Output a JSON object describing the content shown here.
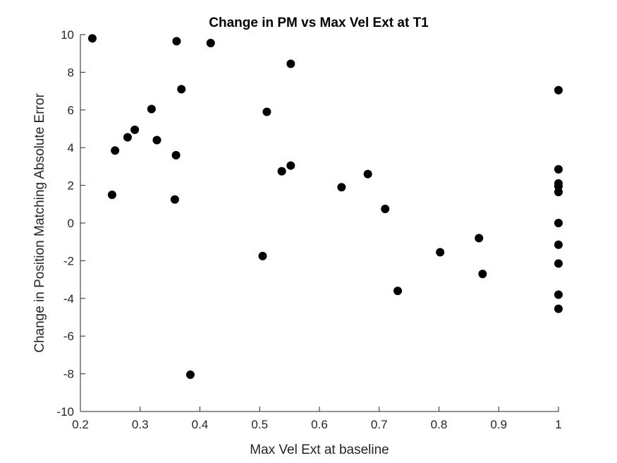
{
  "chart_data": {
    "type": "scatter",
    "title": "Change in PM vs Max Vel Ext at T1",
    "xlabel": "Max Vel Ext at baseline",
    "ylabel": "Change in Position Matching Absolute Error",
    "xlim": [
      0.2,
      1.0
    ],
    "ylim": [
      -10,
      10
    ],
    "xticks": [
      "0.2",
      "0.3",
      "0.4",
      "0.5",
      "0.6",
      "0.7",
      "0.8",
      "0.9",
      "1"
    ],
    "yticks": [
      "-10",
      "-8",
      "-6",
      "-4",
      "-2",
      "0",
      "2",
      "4",
      "6",
      "8",
      "10"
    ],
    "grid": false,
    "marker_color": "#000000",
    "points": [
      {
        "x": 0.22,
        "y": 9.8
      },
      {
        "x": 0.253,
        "y": 1.5
      },
      {
        "x": 0.258,
        "y": 3.85
      },
      {
        "x": 0.279,
        "y": 4.55
      },
      {
        "x": 0.291,
        "y": 4.95
      },
      {
        "x": 0.319,
        "y": 6.05
      },
      {
        "x": 0.328,
        "y": 4.4
      },
      {
        "x": 0.358,
        "y": 1.25
      },
      {
        "x": 0.36,
        "y": 3.6
      },
      {
        "x": 0.361,
        "y": 9.65
      },
      {
        "x": 0.369,
        "y": 7.1
      },
      {
        "x": 0.384,
        "y": -8.05
      },
      {
        "x": 0.418,
        "y": 9.55
      },
      {
        "x": 0.505,
        "y": -1.75
      },
      {
        "x": 0.512,
        "y": 5.9
      },
      {
        "x": 0.537,
        "y": 2.75
      },
      {
        "x": 0.552,
        "y": 3.05
      },
      {
        "x": 0.552,
        "y": 8.45
      },
      {
        "x": 0.637,
        "y": 1.9
      },
      {
        "x": 0.681,
        "y": 2.6
      },
      {
        "x": 0.71,
        "y": 0.75
      },
      {
        "x": 0.731,
        "y": -3.6
      },
      {
        "x": 0.802,
        "y": -1.55
      },
      {
        "x": 0.867,
        "y": -0.8
      },
      {
        "x": 0.873,
        "y": -2.7
      },
      {
        "x": 1.0,
        "y": 7.05
      },
      {
        "x": 1.0,
        "y": 2.85
      },
      {
        "x": 1.0,
        "y": 2.1
      },
      {
        "x": 1.0,
        "y": 1.95
      },
      {
        "x": 1.0,
        "y": 1.65
      },
      {
        "x": 1.0,
        "y": 0.0
      },
      {
        "x": 1.0,
        "y": -1.15
      },
      {
        "x": 1.0,
        "y": -2.15
      },
      {
        "x": 1.0,
        "y": -3.8
      },
      {
        "x": 1.0,
        "y": -4.55
      }
    ]
  }
}
